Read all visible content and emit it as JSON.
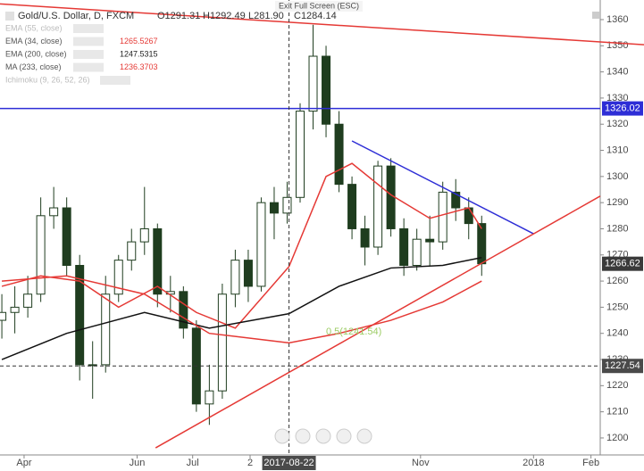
{
  "chart_data": {
    "type": "candlestick",
    "title": "Gold/U.S. Dollar, D, FXCM",
    "ohlc_labels": [
      "O1291.31",
      "H1292.49",
      "L281.90",
      "C1284.14"
    ],
    "exit_label": "Exit Full Screen (ESC)",
    "indicators": [
      {
        "name": "EMA (55, close)",
        "color": "#bbbbbb"
      },
      {
        "name": "EMA (34, close)",
        "color": "#555555",
        "value": "1265.5267",
        "value_color": "#e53935"
      },
      {
        "name": "EMA (200, close)",
        "color": "#555555",
        "value": "1247.5315",
        "value_color": "#222222"
      },
      {
        "name": "MA (233, close)",
        "color": "#555555",
        "value": "1236.3703",
        "value_color": "#e53935"
      },
      {
        "name": "Ichimoku (9, 26, 52, 26)",
        "color": "#bbbbbb"
      }
    ],
    "x": [
      "2017-03-20",
      "2017-03-27",
      "2017-04-03",
      "2017-04-10",
      "2017-04-17",
      "2017-04-24",
      "2017-05-01",
      "2017-05-08",
      "2017-05-15",
      "2017-05-22",
      "2017-05-29",
      "2017-06-05",
      "2017-06-12",
      "2017-06-19",
      "2017-06-26",
      "2017-07-03",
      "2017-07-10",
      "2017-07-17",
      "2017-07-24",
      "2017-07-31",
      "2017-08-07",
      "2017-08-14",
      "2017-08-21",
      "2017-08-28",
      "2017-09-04",
      "2017-09-11",
      "2017-09-18",
      "2017-09-25",
      "2017-10-02",
      "2017-10-09",
      "2017-10-16",
      "2017-10-23",
      "2017-10-30",
      "2017-11-06",
      "2017-11-13",
      "2017-11-20",
      "2017-11-27",
      "2017-12-04"
    ],
    "open": [
      1245,
      1248,
      1250,
      1255,
      1285,
      1288,
      1266,
      1228,
      1228,
      1255,
      1268,
      1275,
      1280,
      1255,
      1256,
      1242,
      1213,
      1218,
      1255,
      1268,
      1258,
      1290,
      1286,
      1292,
      1325,
      1346,
      1320,
      1297,
      1280,
      1273,
      1304,
      1280,
      1266,
      1276,
      1275,
      1294,
      1288,
      1282
    ],
    "high": [
      1255,
      1258,
      1262,
      1292,
      1296,
      1292,
      1270,
      1237,
      1262,
      1270,
      1280,
      1296,
      1282,
      1262,
      1258,
      1245,
      1228,
      1259,
      1272,
      1272,
      1292,
      1296,
      1298,
      1328,
      1358,
      1350,
      1325,
      1300,
      1285,
      1306,
      1307,
      1284,
      1280,
      1285,
      1298,
      1299,
      1292,
      1285
    ],
    "low": [
      1238,
      1240,
      1246,
      1252,
      1280,
      1262,
      1222,
      1215,
      1225,
      1252,
      1264,
      1270,
      1250,
      1248,
      1238,
      1210,
      1205,
      1215,
      1250,
      1252,
      1256,
      1276,
      1282,
      1290,
      1318,
      1315,
      1294,
      1276,
      1266,
      1270,
      1277,
      1262,
      1264,
      1266,
      1272,
      1283,
      1276,
      1262
    ],
    "close": [
      1248,
      1250,
      1255,
      1285,
      1288,
      1266,
      1228,
      1228,
      1255,
      1268,
      1275,
      1280,
      1255,
      1256,
      1242,
      1213,
      1218,
      1255,
      1268,
      1258,
      1290,
      1286,
      1292,
      1325,
      1346,
      1320,
      1297,
      1280,
      1273,
      1304,
      1280,
      1266,
      1276,
      1275,
      1294,
      1288,
      1282,
      1266.62
    ],
    "candle_color": "#1f3d1f",
    "overlays": [
      {
        "color": "#e53935",
        "x": [
          "2017-03-20",
          "2017-04-10",
          "2017-05-01",
          "2017-05-22",
          "2017-06-12",
          "2017-07-03",
          "2017-07-24",
          "2017-08-22",
          "2017-09-11",
          "2017-09-25",
          "2017-10-16",
          "2017-11-06",
          "2017-11-27",
          "2017-12-04"
        ],
        "values": [
          1258,
          1262,
          1260,
          1250,
          1258,
          1248,
          1242,
          1265.5267,
          1300,
          1305,
          1293,
          1284,
          1288,
          1280
        ]
      },
      {
        "color": "#111111",
        "x": [
          "2017-03-20",
          "2017-04-24",
          "2017-06-05",
          "2017-07-10",
          "2017-08-22",
          "2017-09-18",
          "2017-10-16",
          "2017-11-13",
          "2017-12-04"
        ],
        "values": [
          1230,
          1240,
          1248,
          1242,
          1247.5315,
          1258,
          1265,
          1266,
          1269
        ]
      },
      {
        "color": "#e53935",
        "x": [
          "2017-03-20",
          "2017-04-24",
          "2017-06-05",
          "2017-07-10",
          "2017-08-22",
          "2017-09-18",
          "2017-10-16",
          "2017-11-13",
          "2017-12-04"
        ],
        "values": [
          1260,
          1262,
          1255,
          1240,
          1236.3703,
          1240,
          1245,
          1252,
          1260
        ]
      }
    ],
    "trendlines": [
      {
        "color": "#e53935",
        "x": [
          "2017-03-19",
          "2018-03-02"
        ],
        "values": [
          1366,
          1350.4
        ]
      },
      {
        "color": "#2e2ed6",
        "x": [
          "2017-09-25",
          "2018-01-01"
        ],
        "values": [
          1313.6,
          1278.1
        ]
      },
      {
        "color": "#e53935",
        "x": [
          "2017-06-11",
          "2018-02-06"
        ],
        "values": [
          1196.2,
          1292.5
        ]
      }
    ],
    "level": {
      "value": 1326.02,
      "color": "#2e2ed6"
    },
    "annotation": {
      "text": "0.5(1241.54)",
      "x": "2017-09-26",
      "y": 1240.5,
      "color": "#9ccc65"
    },
    "crosshair": {
      "x": "2017-08-22",
      "x_label": "2017-08-22",
      "y": 1227.54
    },
    "xlim": [
      "2017-03-19",
      "2018-02-06"
    ],
    "ylim": [
      1193.5,
      1367.5
    ],
    "yticks": [
      1200,
      1210,
      1220,
      1230,
      1240,
      1250,
      1260,
      1270,
      1280,
      1290,
      1300,
      1310,
      1320,
      1330,
      1340,
      1350,
      1360
    ],
    "xticks": [
      {
        "value": "2017-04-01",
        "label": "Apr"
      },
      {
        "value": "2017-06-01",
        "label": "Jun"
      },
      {
        "value": "2017-07-01",
        "label": "Jul"
      },
      {
        "value": "2017-08-01",
        "label": "2"
      },
      {
        "value": "2017-11-01",
        "label": "Nov"
      },
      {
        "value": "2018-01-01",
        "label": "2018"
      },
      {
        "value": "2018-02-01",
        "label": "Feb"
      }
    ]
  }
}
